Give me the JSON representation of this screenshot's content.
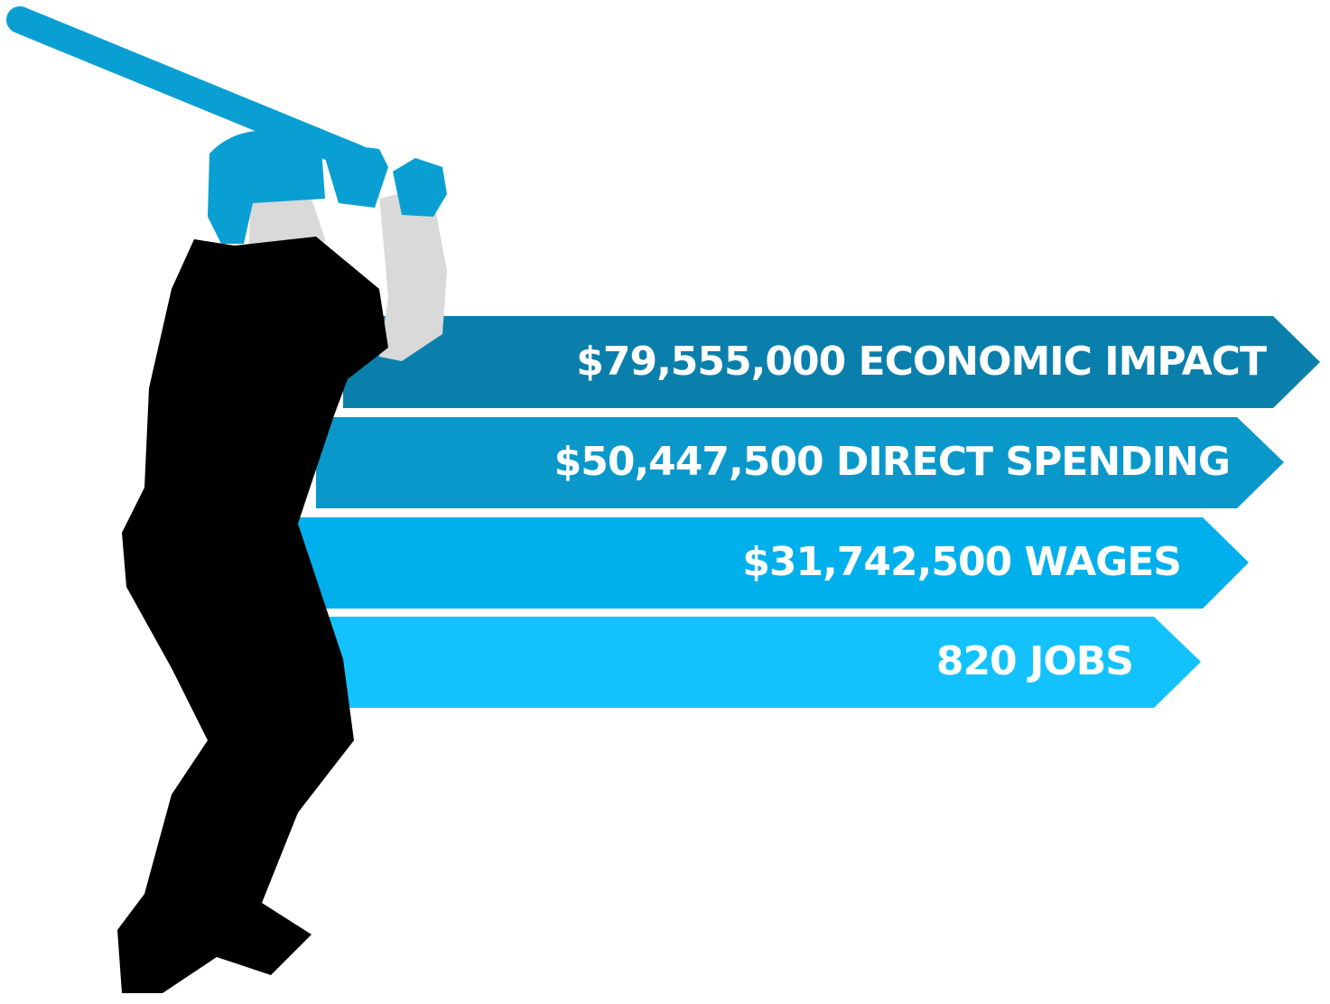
{
  "items": [
    {
      "label": "$79,555,000 ECONOMIC IMPACT"
    },
    {
      "label": "$50,447,500 DIRECT SPENDING"
    },
    {
      "label": "$31,742,500 WAGES"
    },
    {
      "label": "820 JOBS"
    }
  ]
}
